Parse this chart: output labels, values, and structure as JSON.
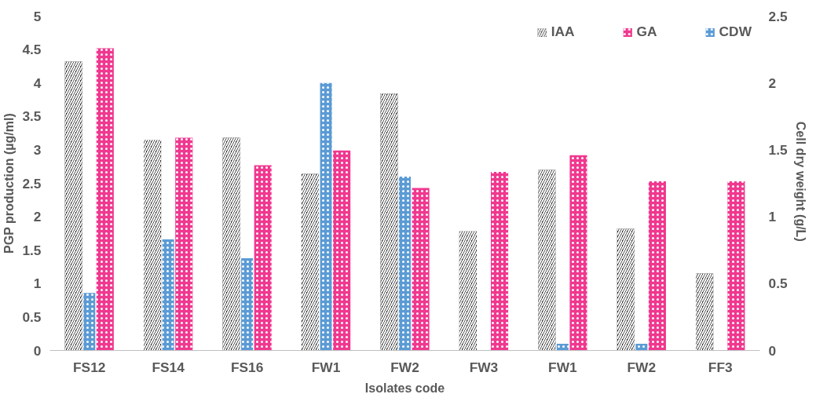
{
  "chart_data": {
    "type": "bar",
    "xlabel": "Isolates code",
    "ylabel": "PGP production (µg/ml)",
    "y2label": "Cell dry weight  (g/L)",
    "categories": [
      "FS12",
      "FS14",
      "FS16",
      "FW1",
      "FW2",
      "FW3",
      "FW1",
      "FW2",
      "FF3"
    ],
    "series": [
      {
        "name": "IAA",
        "color": "#1a1a1a",
        "values": [
          4.32,
          3.15,
          3.18,
          2.64,
          3.84,
          1.78,
          2.7,
          1.82,
          1.15
        ]
      },
      {
        "name": "GA",
        "color": "#f0388f",
        "values": [
          4.52,
          3.18,
          2.77,
          2.99,
          2.43,
          2.67,
          2.92,
          2.53,
          2.53
        ]
      },
      {
        "name": "CDW",
        "color": "#5b9bd5",
        "axis": "y2",
        "values": [
          0.43,
          0.83,
          0.69,
          2.0,
          1.3,
          0,
          0.05,
          0.05,
          0
        ]
      }
    ],
    "ylim": [
      0,
      5
    ],
    "yticks": [
      0,
      0.5,
      1,
      1.5,
      2,
      2.5,
      3,
      3.5,
      4,
      4.5,
      5
    ],
    "y2lim": [
      0,
      2.5
    ],
    "y2ticks": [
      0,
      0.5,
      1,
      1.5,
      2,
      2.5
    ],
    "grid": false,
    "legend": "top right"
  }
}
